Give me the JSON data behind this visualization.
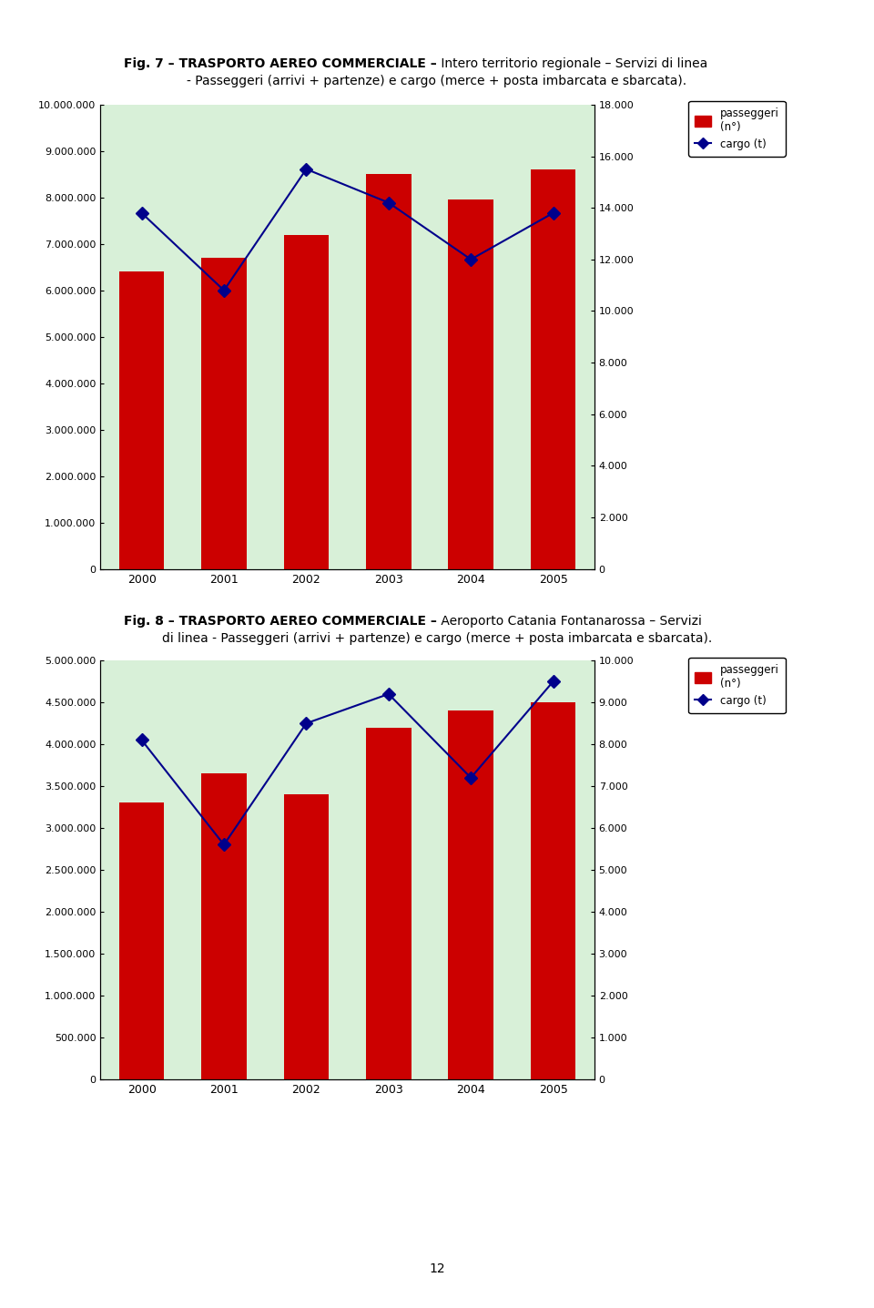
{
  "fig1": {
    "years": [
      2000,
      2001,
      2002,
      2003,
      2004,
      2005
    ],
    "passengers": [
      6400000,
      6700000,
      7200000,
      8500000,
      7950000,
      8600000
    ],
    "cargo": [
      13800,
      10800,
      15500,
      14200,
      12000,
      13800
    ],
    "bar_color": "#cc0000",
    "line_color": "#00008b",
    "left_ylim": [
      0,
      10000000
    ],
    "right_ylim": [
      0,
      18000
    ],
    "left_yticks": [
      0,
      1000000,
      2000000,
      3000000,
      4000000,
      5000000,
      6000000,
      7000000,
      8000000,
      9000000,
      10000000
    ],
    "right_yticks": [
      0,
      2000,
      4000,
      6000,
      8000,
      10000,
      12000,
      14000,
      16000,
      18000
    ],
    "bg_color": "#d8f0d8",
    "title1_bold": "Fig. 7 – TRASPORTO AEREO COMMERCIALE –",
    "title1_normal": " Intero territorio regionale – Servizi di linea",
    "title2": "- Passeggeri (arrivi + partenze) e cargo (merce + posta imbarcata e sbarcata)."
  },
  "fig2": {
    "years": [
      2000,
      2001,
      2002,
      2003,
      2004,
      2005
    ],
    "passengers": [
      3300000,
      3650000,
      3400000,
      4200000,
      4400000,
      4500000
    ],
    "cargo": [
      8100,
      5600,
      8500,
      9200,
      7200,
      9500
    ],
    "bar_color": "#cc0000",
    "line_color": "#00008b",
    "left_ylim": [
      0,
      5000000
    ],
    "right_ylim": [
      0,
      10000
    ],
    "left_yticks": [
      0,
      500000,
      1000000,
      1500000,
      2000000,
      2500000,
      3000000,
      3500000,
      4000000,
      4500000,
      5000000
    ],
    "right_yticks": [
      0,
      1000,
      2000,
      3000,
      4000,
      5000,
      6000,
      7000,
      8000,
      9000,
      10000
    ],
    "bg_color": "#d8f0d8",
    "title1_bold": "Fig. 8 – TRASPORTO AEREO COMMERCIALE –",
    "title1_normal": " Aeroporto Catania Fontanarossa – Servizi",
    "title2": "di linea - Passeggeri (arrivi + partenze) e cargo (merce + posta imbarcata e sbarcata)."
  },
  "legend_passeggeri": "passeggeri\n(n°)",
  "legend_cargo": "cargo (t)",
  "page_number": "12"
}
